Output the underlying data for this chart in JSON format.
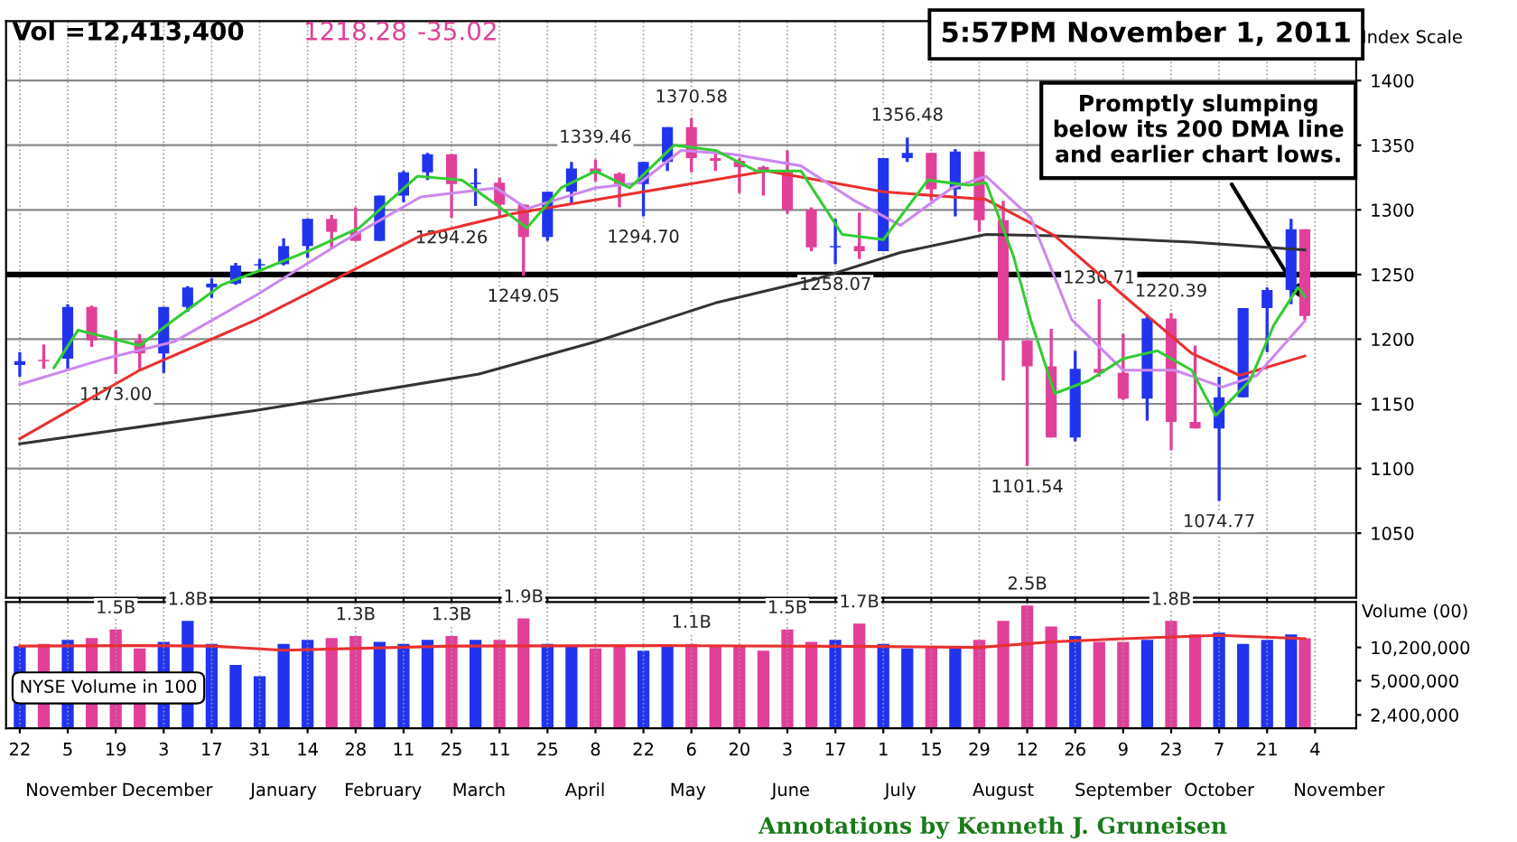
{
  "chart_data": [
    {
      "type": "candlestick",
      "ylabel": "Index Scale",
      "x": [
        "2010-10-22",
        "2010-10-29",
        "2010-11-05",
        "2010-11-12",
        "2010-11-19",
        "2010-11-26",
        "2010-12-03",
        "2010-12-10",
        "2010-12-17",
        "2010-12-24",
        "2010-12-31",
        "2011-01-07",
        "2011-01-14",
        "2011-01-21",
        "2011-01-28",
        "2011-02-04",
        "2011-02-11",
        "2011-02-18",
        "2011-02-25",
        "2011-03-04",
        "2011-03-11",
        "2011-03-18",
        "2011-03-25",
        "2011-04-01",
        "2011-04-08",
        "2011-04-15",
        "2011-04-22",
        "2011-04-29",
        "2011-05-06",
        "2011-05-13",
        "2011-05-20",
        "2011-05-27",
        "2011-06-03",
        "2011-06-10",
        "2011-06-17",
        "2011-06-24",
        "2011-07-01",
        "2011-07-08",
        "2011-07-15",
        "2011-07-22",
        "2011-07-29",
        "2011-08-05",
        "2011-08-12",
        "2011-08-19",
        "2011-08-26",
        "2011-09-02",
        "2011-09-09",
        "2011-09-16",
        "2011-09-23",
        "2011-09-30",
        "2011-10-07",
        "2011-10-14",
        "2011-10-21",
        "2011-10-28",
        "2011-11-01"
      ],
      "ohlc": [
        [
          1180,
          1190,
          1171,
          1183
        ],
        [
          1184,
          1196,
          1177,
          1183
        ],
        [
          1185,
          1227,
          1177,
          1225
        ],
        [
          1225,
          1226,
          1194,
          1199
        ],
        [
          1200,
          1207,
          1173,
          1199
        ],
        [
          1199,
          1204,
          1176,
          1189
        ],
        [
          1189,
          1225,
          1174,
          1225
        ],
        [
          1225,
          1241,
          1221,
          1240
        ],
        [
          1240,
          1247,
          1232,
          1243
        ],
        [
          1243,
          1259,
          1242,
          1257
        ],
        [
          1257,
          1262,
          1254,
          1258
        ],
        [
          1258,
          1278,
          1257,
          1272
        ],
        [
          1272,
          1293,
          1263,
          1293
        ],
        [
          1293,
          1296,
          1271,
          1283
        ],
        [
          1283,
          1302,
          1276,
          1276
        ],
        [
          1276,
          1311,
          1276,
          1311
        ],
        [
          1311,
          1330,
          1306,
          1329
        ],
        [
          1329,
          1344,
          1323,
          1343
        ],
        [
          1343,
          1343,
          1294,
          1320
        ],
        [
          1320,
          1332,
          1303,
          1321
        ],
        [
          1321,
          1325,
          1294,
          1304
        ],
        [
          1304,
          1304,
          1249,
          1279
        ],
        [
          1279,
          1314,
          1276,
          1314
        ],
        [
          1314,
          1337,
          1305,
          1332
        ],
        [
          1332,
          1339,
          1322,
          1328
        ],
        [
          1328,
          1329,
          1302,
          1320
        ],
        [
          1320,
          1337,
          1295,
          1337
        ],
        [
          1337,
          1364,
          1330,
          1364
        ],
        [
          1364,
          1371,
          1329,
          1340
        ],
        [
          1340,
          1346,
          1330,
          1338
        ],
        [
          1338,
          1340,
          1313,
          1333
        ],
        [
          1333,
          1334,
          1311,
          1331
        ],
        [
          1331,
          1346,
          1297,
          1300
        ],
        [
          1300,
          1302,
          1268,
          1271
        ],
        [
          1271,
          1293,
          1258,
          1272
        ],
        [
          1272,
          1298,
          1262,
          1268
        ],
        [
          1268,
          1340,
          1268,
          1340
        ],
        [
          1340,
          1356,
          1337,
          1344
        ],
        [
          1344,
          1344,
          1307,
          1316
        ],
        [
          1316,
          1347,
          1295,
          1345
        ],
        [
          1345,
          1345,
          1283,
          1292
        ],
        [
          1292,
          1307,
          1168,
          1199
        ],
        [
          1199,
          1199,
          1102,
          1179
        ],
        [
          1179,
          1208,
          1124,
          1124
        ],
        [
          1124,
          1191,
          1121,
          1177
        ],
        [
          1177,
          1231,
          1171,
          1174
        ],
        [
          1174,
          1204,
          1153,
          1154
        ],
        [
          1154,
          1218,
          1137,
          1216
        ],
        [
          1216,
          1220,
          1114,
          1136
        ],
        [
          1136,
          1195,
          1131,
          1131
        ],
        [
          1131,
          1171,
          1075,
          1155
        ],
        [
          1155,
          1224,
          1155,
          1224
        ],
        [
          1224,
          1240,
          1190,
          1238
        ],
        [
          1238,
          1293,
          1227,
          1285
        ],
        [
          1285,
          1285,
          1215,
          1218
        ]
      ],
      "colors": [
        "#2233ee",
        "#e0409a",
        "#2233ee",
        "#e0409a",
        "#e0409a",
        "#e0409a",
        "#2233ee",
        "#2233ee",
        "#2233ee",
        "#2233ee",
        "#2233ee",
        "#2233ee",
        "#2233ee",
        "#e0409a",
        "#e0409a",
        "#2233ee",
        "#2233ee",
        "#2233ee",
        "#e0409a",
        "#2233ee",
        "#e0409a",
        "#e0409a",
        "#2233ee",
        "#2233ee",
        "#e0409a",
        "#e0409a",
        "#2233ee",
        "#2233ee",
        "#e0409a",
        "#e0409a",
        "#e0409a",
        "#e0409a",
        "#e0409a",
        "#e0409a",
        "#2233ee",
        "#e0409a",
        "#2233ee",
        "#2233ee",
        "#e0409a",
        "#2233ee",
        "#e0409a",
        "#e0409a",
        "#e0409a",
        "#e0409a",
        "#2233ee",
        "#e0409a",
        "#e0409a",
        "#2233ee",
        "#e0409a",
        "#e0409a",
        "#2233ee",
        "#2233ee",
        "#2233ee",
        "#2233ee",
        "#e0409a"
      ],
      "series": [
        {
          "type": "line",
          "color": "#333333",
          "x": [
            "2010-10-22",
            "2010-12-30",
            "2011-03-05",
            "2011-04-08",
            "2011-05-13",
            "2011-06-12",
            "2011-07-06",
            "2011-07-31",
            "2011-08-20",
            "2011-09-29",
            "2011-11-01"
          ],
          "values": [
            1119,
            1145,
            1173,
            1198,
            1228,
            1247,
            1267,
            1281,
            1280,
            1275,
            1269
          ]
        },
        {
          "type": "line",
          "color": "#e83030",
          "x": [
            "2010-10-22",
            "2010-11-26",
            "2010-12-30",
            "2011-02-16",
            "2011-03-15",
            "2011-04-13",
            "2011-05-28",
            "2011-07-01",
            "2011-07-31",
            "2011-08-20",
            "2011-09-09",
            "2011-09-29",
            "2011-10-13",
            "2011-11-01"
          ],
          "values": [
            1123,
            1176,
            1215,
            1280,
            1297,
            1310,
            1330,
            1314,
            1308,
            1280,
            1234,
            1189,
            1172,
            1187
          ]
        },
        {
          "type": "line",
          "color": "#cc88ee",
          "x": [
            "2010-10-22",
            "2010-11-16",
            "2010-12-06",
            "2010-12-30",
            "2011-01-24",
            "2011-02-16",
            "2011-03-10",
            "2011-03-19",
            "2011-04-08",
            "2011-04-21",
            "2011-05-03",
            "2011-05-18",
            "2011-06-07",
            "2011-06-22",
            "2011-07-06",
            "2011-07-21",
            "2011-07-31",
            "2011-08-13",
            "2011-08-25",
            "2011-09-09",
            "2011-09-24",
            "2011-10-08",
            "2011-10-18",
            "2011-11-01"
          ],
          "values": [
            1165,
            1185,
            1198,
            1234,
            1275,
            1310,
            1317,
            1301,
            1317,
            1321,
            1346,
            1343,
            1334,
            1308,
            1288,
            1317,
            1326,
            1294,
            1215,
            1176,
            1176,
            1163,
            1172,
            1214
          ]
        },
        {
          "type": "line",
          "color": "#33cc33",
          "x": [
            "2010-11-01",
            "2010-11-08",
            "2010-11-26",
            "2010-12-06",
            "2010-12-20",
            "2010-12-30",
            "2011-01-14",
            "2011-01-29",
            "2011-02-15",
            "2011-02-28",
            "2011-03-10",
            "2011-03-19",
            "2011-03-29",
            "2011-04-08",
            "2011-04-18",
            "2011-05-01",
            "2011-05-13",
            "2011-05-25",
            "2011-06-07",
            "2011-06-19",
            "2011-07-01",
            "2011-07-14",
            "2011-07-26",
            "2011-07-31",
            "2011-08-08",
            "2011-08-13",
            "2011-08-20",
            "2011-08-30",
            "2011-09-09",
            "2011-09-19",
            "2011-09-29",
            "2011-10-06",
            "2011-10-16",
            "2011-10-23",
            "2011-10-30",
            "2011-11-01"
          ],
          "values": [
            1178,
            1207,
            1195,
            1215,
            1242,
            1252,
            1268,
            1286,
            1326,
            1323,
            1304,
            1286,
            1317,
            1330,
            1317,
            1350,
            1346,
            1330,
            1330,
            1281,
            1277,
            1323,
            1319,
            1321,
            1264,
            1215,
            1158,
            1168,
            1185,
            1191,
            1176,
            1141,
            1168,
            1211,
            1240,
            1233
          ]
        }
      ],
      "xlim": [
        "2010-10-18",
        "2011-11-16"
      ],
      "xticks": [
        "2010-10-22",
        "2010-11-05",
        "2010-11-19",
        "2010-12-03",
        "2010-12-17",
        "2010-12-31",
        "2011-01-14",
        "2011-01-28",
        "2011-02-11",
        "2011-02-25",
        "2011-03-11",
        "2011-03-25",
        "2011-04-08",
        "2011-04-22",
        "2011-05-06",
        "2011-05-20",
        "2011-06-03",
        "2011-06-17",
        "2011-07-01",
        "2011-07-15",
        "2011-07-29",
        "2011-08-12",
        "2011-08-26",
        "2011-09-09",
        "2011-09-23",
        "2011-10-07",
        "2011-10-21",
        "2011-11-04"
      ],
      "ylim": [
        1000,
        1446
      ],
      "yticks": [
        1050,
        1100,
        1150,
        1200,
        1250,
        1300,
        1350,
        1400
      ],
      "grid": true,
      "tick_labels": "y",
      "ref_lines": [
        {
          "axis": "y",
          "value": 1250,
          "color": "#000000"
        }
      ],
      "annotations": [
        "Vol =12,413,400",
        "1218.28",
        "-35.02",
        "5:57PM November 1, 2011",
        {
          "text": "1173.00",
          "x": "2010-11-19",
          "y": 1173
        },
        {
          "text": "1294.26",
          "x": "2011-02-25",
          "y": 1294.26
        },
        {
          "text": "1249.05",
          "x": "2011-03-18",
          "y": 1249.05
        },
        {
          "text": "1339.46",
          "x": "2011-04-08",
          "y": 1339.46
        },
        {
          "text": "1294.70",
          "x": "2011-04-22",
          "y": 1294.7
        },
        {
          "text": "1370.58",
          "x": "2011-05-06",
          "y": 1370.58
        },
        {
          "text": "1258.07",
          "x": "2011-06-17",
          "y": 1258.07
        },
        {
          "text": "1356.48",
          "x": "2011-07-08",
          "y": 1356.48
        },
        {
          "text": "1101.54",
          "x": "2011-08-12",
          "y": 1101.54
        },
        {
          "text": "1230.71",
          "x": "2011-09-02",
          "y": 1230.71
        },
        {
          "text": "1220.39",
          "x": "2011-09-23",
          "y": 1220.39
        },
        {
          "text": "1074.77",
          "x": "2011-10-07",
          "y": 1074.77
        },
        {
          "text": "Promptly slumping\nbelow its 200 DMA line\nand earlier chart lows.",
          "x": "2011-11-01",
          "y": 1228
        }
      ]
    },
    {
      "type": "bar",
      "ylabel": "Volume (00)",
      "x": [
        "2010-10-22",
        "2010-10-29",
        "2010-11-05",
        "2010-11-12",
        "2010-11-19",
        "2010-11-26",
        "2010-12-03",
        "2010-12-10",
        "2010-12-17",
        "2010-12-24",
        "2010-12-31",
        "2011-01-07",
        "2011-01-14",
        "2011-01-21",
        "2011-01-28",
        "2011-02-04",
        "2011-02-11",
        "2011-02-18",
        "2011-02-25",
        "2011-03-04",
        "2011-03-11",
        "2011-03-18",
        "2011-03-25",
        "2011-04-01",
        "2011-04-08",
        "2011-04-15",
        "2011-04-22",
        "2011-04-29",
        "2011-05-06",
        "2011-05-13",
        "2011-05-20",
        "2011-05-27",
        "2011-06-03",
        "2011-06-10",
        "2011-06-17",
        "2011-06-24",
        "2011-07-01",
        "2011-07-08",
        "2011-07-15",
        "2011-07-22",
        "2011-07-29",
        "2011-08-05",
        "2011-08-12",
        "2011-08-19",
        "2011-08-26",
        "2011-09-02",
        "2011-09-09",
        "2011-09-16",
        "2011-09-23",
        "2011-09-30",
        "2011-10-07",
        "2011-10-14",
        "2011-10-21",
        "2011-10-28",
        "2011-11-01"
      ],
      "values": [
        10500000,
        11000000,
        12000000,
        12500000,
        15000000,
        10000000,
        11500000,
        18000000,
        11000000,
        7000000,
        5500000,
        11000000,
        12000000,
        12500000,
        13000000,
        11500000,
        11000000,
        12000000,
        13000000,
        12000000,
        12000000,
        19000000,
        11000000,
        10500000,
        10000000,
        10500000,
        9500000,
        10500000,
        11000000,
        10500000,
        10500000,
        9500000,
        15000000,
        11500000,
        12000000,
        17000000,
        11000000,
        10000000,
        10500000,
        10000000,
        12000000,
        18000000,
        25000000,
        16000000,
        13000000,
        11500000,
        11500000,
        12000000,
        18000000,
        13500000,
        14000000,
        11000000,
        12000000,
        13500000,
        12413400
      ],
      "colors": [
        "#2233ee",
        "#e0409a",
        "#2233ee",
        "#e0409a",
        "#e0409a",
        "#e0409a",
        "#2233ee",
        "#2233ee",
        "#2233ee",
        "#2233ee",
        "#2233ee",
        "#2233ee",
        "#2233ee",
        "#e0409a",
        "#e0409a",
        "#2233ee",
        "#2233ee",
        "#2233ee",
        "#e0409a",
        "#2233ee",
        "#e0409a",
        "#e0409a",
        "#2233ee",
        "#2233ee",
        "#e0409a",
        "#e0409a",
        "#2233ee",
        "#2233ee",
        "#e0409a",
        "#e0409a",
        "#e0409a",
        "#e0409a",
        "#e0409a",
        "#e0409a",
        "#2233ee",
        "#e0409a",
        "#2233ee",
        "#2233ee",
        "#e0409a",
        "#2233ee",
        "#e0409a",
        "#e0409a",
        "#e0409a",
        "#e0409a",
        "#2233ee",
        "#e0409a",
        "#e0409a",
        "#2233ee",
        "#e0409a",
        "#e0409a",
        "#2233ee",
        "#2233ee",
        "#2233ee",
        "#2233ee",
        "#e0409a"
      ],
      "series": [
        {
          "type": "line",
          "color": "#e83030",
          "x": [
            "2010-10-22",
            "2010-11-26",
            "2010-12-17",
            "2011-01-07",
            "2011-02-25",
            "2011-04-29",
            "2011-06-30",
            "2011-07-29",
            "2011-08-19",
            "2011-09-09",
            "2011-10-07",
            "2011-11-01"
          ],
          "values": [
            10500000,
            10600000,
            10500000,
            9600000,
            10500000,
            10600000,
            10400000,
            10200000,
            11500000,
            12300000,
            13200000,
            12300000
          ]
        }
      ],
      "log": "y",
      "ylim": [
        1800000,
        27000000
      ],
      "yticks": [
        {
          "value": 2400000,
          "label": "2,400,000"
        },
        {
          "value": 5000000,
          "label": "5,000,000"
        },
        {
          "value": 10200000,
          "label": "10,200,000"
        }
      ],
      "xlim": [
        "2010-10-18",
        "2011-11-16"
      ],
      "xticks": [
        {
          "value": "2010-10-22",
          "label": "22"
        },
        {
          "value": "2010-11-05",
          "label": "5"
        },
        {
          "value": "2010-11-19",
          "label": "19"
        },
        {
          "value": "2010-12-03",
          "label": "3"
        },
        {
          "value": "2010-12-17",
          "label": "17"
        },
        {
          "value": "2010-12-31",
          "label": "31"
        },
        {
          "value": "2011-01-14",
          "label": "14"
        },
        {
          "value": "2011-01-28",
          "label": "28"
        },
        {
          "value": "2011-02-11",
          "label": "11"
        },
        {
          "value": "2011-02-25",
          "label": "25"
        },
        {
          "value": "2011-03-11",
          "label": "11"
        },
        {
          "value": "2011-03-25",
          "label": "25"
        },
        {
          "value": "2011-04-08",
          "label": "8"
        },
        {
          "value": "2011-04-22",
          "label": "22"
        },
        {
          "value": "2011-05-06",
          "label": "6"
        },
        {
          "value": "2011-05-20",
          "label": "20"
        },
        {
          "value": "2011-06-03",
          "label": "3"
        },
        {
          "value": "2011-06-17",
          "label": "17"
        },
        {
          "value": "2011-07-01",
          "label": "1"
        },
        {
          "value": "2011-07-15",
          "label": "15"
        },
        {
          "value": "2011-07-29",
          "label": "29"
        },
        {
          "value": "2011-08-12",
          "label": "12"
        },
        {
          "value": "2011-08-26",
          "label": "26"
        },
        {
          "value": "2011-09-09",
          "label": "9"
        },
        {
          "value": "2011-09-23",
          "label": "23"
        },
        {
          "value": "2011-10-07",
          "label": "7"
        },
        {
          "value": "2011-10-21",
          "label": "21"
        },
        {
          "value": "2011-11-04",
          "label": "4"
        }
      ],
      "x2lim": [
        "2010-10-18",
        "2011-11-16"
      ],
      "x2ticks": [
        {
          "value": "2010-11-06",
          "label": "November"
        },
        {
          "value": "2010-12-04",
          "label": "December"
        },
        {
          "value": "2011-01-07",
          "label": "January"
        },
        {
          "value": "2011-02-05",
          "label": "February"
        },
        {
          "value": "2011-03-05",
          "label": "March"
        },
        {
          "value": "2011-04-05",
          "label": "April"
        },
        {
          "value": "2011-05-05",
          "label": "May"
        },
        {
          "value": "2011-06-04",
          "label": "June"
        },
        {
          "value": "2011-07-06",
          "label": "July"
        },
        {
          "value": "2011-08-05",
          "label": "August"
        },
        {
          "value": "2011-09-09",
          "label": "September"
        },
        {
          "value": "2011-10-07",
          "label": "October"
        },
        {
          "value": "2011-11-11",
          "label": "November"
        }
      ],
      "grid": "x",
      "annotations": [
        "NYSE Volume in 100",
        "Annotations by Kenneth J. Gruneisen",
        {
          "text": "1.5B",
          "x": "2010-11-19",
          "y": 15000000
        },
        {
          "text": "1.8B",
          "x": "2010-12-10",
          "y": 18000000
        },
        {
          "text": "1.3B",
          "x": "2011-01-28",
          "y": 13000000
        },
        {
          "text": "1.3B",
          "x": "2011-02-25",
          "y": 13000000
        },
        {
          "text": "1.9B",
          "x": "2011-03-18",
          "y": 19000000
        },
        {
          "text": "1.1B",
          "x": "2011-05-06",
          "y": 11000000
        },
        {
          "text": "1.5B",
          "x": "2011-06-03",
          "y": 15000000
        },
        {
          "text": "1.7B",
          "x": "2011-06-24",
          "y": 17000000
        },
        {
          "text": "2.5B",
          "x": "2011-08-12",
          "y": 25000000
        },
        {
          "text": "1.8B",
          "x": "2011-09-23",
          "y": 18000000
        }
      ]
    }
  ]
}
